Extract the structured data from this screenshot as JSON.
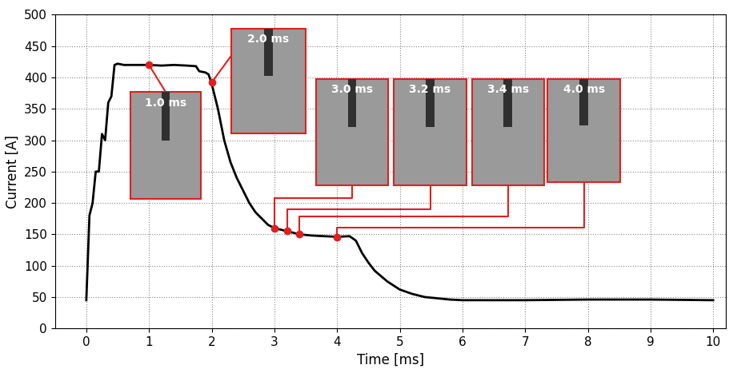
{
  "chart_data": {
    "type": "line",
    "x_label": "Time [ms]",
    "y_label": "Current [A]",
    "x": [
      0.0,
      0.05,
      0.1,
      0.15,
      0.2,
      0.25,
      0.3,
      0.35,
      0.4,
      0.45,
      0.5,
      0.6,
      0.8,
      1.0,
      1.2,
      1.4,
      1.6,
      1.75,
      1.8,
      1.9,
      1.95,
      2.0,
      2.1,
      2.2,
      2.3,
      2.4,
      2.5,
      2.6,
      2.7,
      2.8,
      2.9,
      3.0,
      3.2,
      3.4,
      3.6,
      3.8,
      4.0,
      4.2,
      4.3,
      4.4,
      4.5,
      4.6,
      4.8,
      5.0,
      5.2,
      5.4,
      5.6,
      5.8,
      6.0,
      7.0,
      8.0,
      9.0,
      10.0
    ],
    "values": [
      45,
      180,
      200,
      250,
      250,
      310,
      300,
      360,
      370,
      420,
      422,
      420,
      420,
      420,
      419,
      420,
      419,
      418,
      410,
      408,
      405,
      390,
      350,
      300,
      265,
      240,
      220,
      200,
      185,
      175,
      165,
      160,
      155,
      150,
      148,
      147,
      146,
      147,
      140,
      120,
      105,
      92,
      75,
      62,
      55,
      50,
      48,
      46,
      45,
      45,
      46,
      46,
      45
    ],
    "color": "#000000",
    "annotations": [
      {
        "x": 1.0,
        "y": 420,
        "label": "1.0 ms"
      },
      {
        "x": 2.0,
        "y": 392,
        "label": "2.0 ms"
      },
      {
        "x": 3.0,
        "y": 160,
        "label": "3.0 ms"
      },
      {
        "x": 3.2,
        "y": 155,
        "label": "3.2 ms"
      },
      {
        "x": 3.4,
        "y": 150,
        "label": "3.4 ms"
      },
      {
        "x": 4.0,
        "y": 146,
        "label": "4.0 ms"
      }
    ],
    "xlim": [
      -0.5,
      10.2
    ],
    "xticks": [
      0,
      1,
      2,
      3,
      4,
      5,
      6,
      7,
      8,
      9,
      10
    ],
    "ylim": [
      0,
      500
    ],
    "yticks": [
      0,
      50,
      100,
      150,
      200,
      250,
      300,
      350,
      400,
      450,
      500
    ],
    "grid": true
  }
}
